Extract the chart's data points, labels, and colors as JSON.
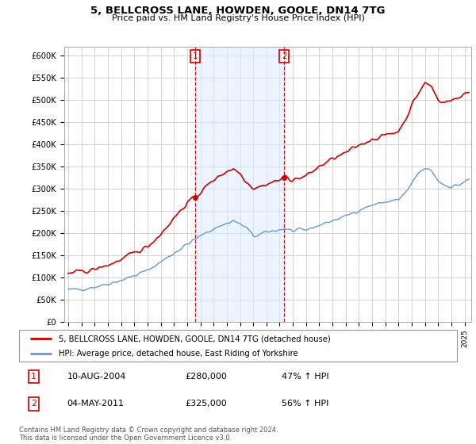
{
  "title": "5, BELLCROSS LANE, HOWDEN, GOOLE, DN14 7TG",
  "subtitle": "Price paid vs. HM Land Registry's House Price Index (HPI)",
  "ylabel_ticks": [
    "£0",
    "£50K",
    "£100K",
    "£150K",
    "£200K",
    "£250K",
    "£300K",
    "£350K",
    "£400K",
    "£450K",
    "£500K",
    "£550K",
    "£600K"
  ],
  "ylim": [
    0,
    620000
  ],
  "ytick_vals": [
    0,
    50000,
    100000,
    150000,
    200000,
    250000,
    300000,
    350000,
    400000,
    450000,
    500000,
    550000,
    600000
  ],
  "price_paid_color": "#cc0000",
  "hpi_color": "#6699cc",
  "hpi_fill_color": "#ddeeff",
  "shade_color": "#ddeeff",
  "annotation_color": "#cc0000",
  "background_color": "#ffffff",
  "grid_color": "#cccccc",
  "legend_label_price": "5, BELLCROSS LANE, HOWDEN, GOOLE, DN14 7TG (detached house)",
  "legend_label_hpi": "HPI: Average price, detached house, East Riding of Yorkshire",
  "sale1_year": 2004.6,
  "sale1_price": 280000,
  "sale2_year": 2011.35,
  "sale2_price": 325000,
  "marker1_date_str": "10-AUG-2004",
  "marker1_price": "£280,000",
  "marker1_hpi": "47% ↑ HPI",
  "marker2_date_str": "04-MAY-2011",
  "marker2_price": "£325,000",
  "marker2_hpi": "56% ↑ HPI",
  "footnote": "Contains HM Land Registry data © Crown copyright and database right 2024.\nThis data is licensed under the Open Government Licence v3.0.",
  "xmin": 1995.0,
  "xmax": 2025.5
}
